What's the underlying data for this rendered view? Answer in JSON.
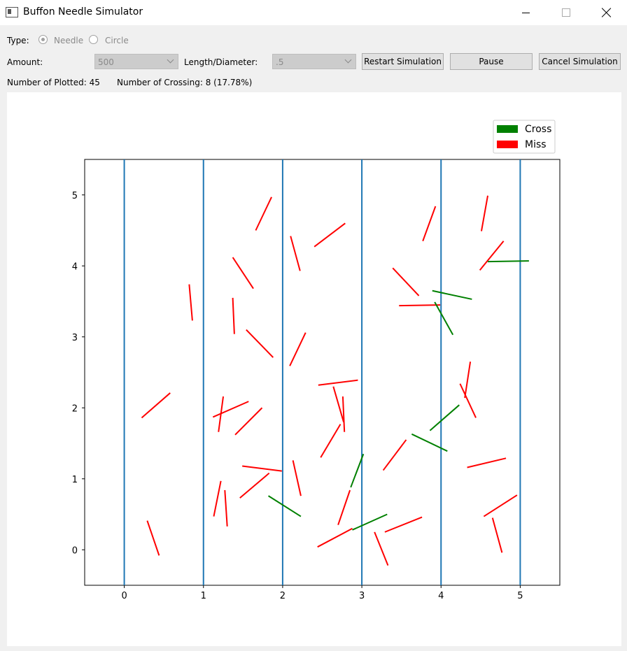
{
  "window": {
    "title": "Buffon Needle Simulator"
  },
  "controls": {
    "type_label": "Type:",
    "type_options": [
      "Needle",
      "Circle"
    ],
    "type_selected": "Needle",
    "amount_label": "Amount:",
    "amount_value": "500",
    "length_label": "Length/Diameter:",
    "length_value": ".5",
    "restart_label": "Restart Simulation",
    "pause_label": "Pause",
    "cancel_label": "Cancel Simulation"
  },
  "status": {
    "plotted": "Number of Plotted: 45",
    "crossing": "Number of Crossing: 8 (17.78%)"
  },
  "colors": {
    "cross": "#008000",
    "miss": "#ff0000",
    "grid_line": "#1f77b4"
  },
  "chart_data": {
    "type": "line",
    "xlim": [
      -0.5,
      5.5
    ],
    "ylim": [
      -0.5,
      5.5
    ],
    "xticks": [
      0,
      1,
      2,
      3,
      4,
      5
    ],
    "yticks": [
      0,
      1,
      2,
      3,
      4,
      5
    ],
    "vertical_lines": [
      0,
      1,
      2,
      3,
      4,
      5
    ],
    "legend": {
      "position": "top-right",
      "entries": [
        {
          "label": "Cross",
          "color": "#008000"
        },
        {
          "label": "Miss",
          "color": "#ff0000"
        }
      ]
    },
    "needles": [
      {
        "x1": 1.66,
        "y1": 4.5,
        "x2": 1.86,
        "y2": 4.97,
        "cross": false
      },
      {
        "x1": 2.1,
        "y1": 4.42,
        "x2": 2.22,
        "y2": 3.93,
        "cross": false
      },
      {
        "x1": 2.4,
        "y1": 4.27,
        "x2": 2.79,
        "y2": 4.6,
        "cross": false
      },
      {
        "x1": 1.37,
        "y1": 4.12,
        "x2": 1.63,
        "y2": 3.68,
        "cross": false
      },
      {
        "x1": 0.82,
        "y1": 3.74,
        "x2": 0.86,
        "y2": 3.23,
        "cross": false
      },
      {
        "x1": 1.37,
        "y1": 3.55,
        "x2": 1.39,
        "y2": 3.04,
        "cross": false
      },
      {
        "x1": 1.54,
        "y1": 3.1,
        "x2": 1.88,
        "y2": 2.71,
        "cross": false
      },
      {
        "x1": 2.09,
        "y1": 2.59,
        "x2": 2.29,
        "y2": 3.06,
        "cross": false
      },
      {
        "x1": 3.39,
        "y1": 3.97,
        "x2": 3.72,
        "y2": 3.58,
        "cross": false
      },
      {
        "x1": 3.77,
        "y1": 4.35,
        "x2": 3.93,
        "y2": 4.84,
        "cross": false
      },
      {
        "x1": 4.51,
        "y1": 4.49,
        "x2": 4.59,
        "y2": 4.99,
        "cross": false
      },
      {
        "x1": 4.49,
        "y1": 3.94,
        "x2": 4.79,
        "y2": 4.35,
        "cross": false
      },
      {
        "x1": 3.47,
        "y1": 3.44,
        "x2": 3.99,
        "y2": 3.45,
        "cross": false
      },
      {
        "x1": 0.22,
        "y1": 1.86,
        "x2": 0.58,
        "y2": 2.21,
        "cross": false
      },
      {
        "x1": 1.12,
        "y1": 1.87,
        "x2": 1.57,
        "y2": 2.09,
        "cross": false
      },
      {
        "x1": 1.19,
        "y1": 1.66,
        "x2": 1.25,
        "y2": 2.16,
        "cross": false
      },
      {
        "x1": 1.4,
        "y1": 1.62,
        "x2": 1.74,
        "y2": 2.0,
        "cross": false
      },
      {
        "x1": 2.45,
        "y1": 2.32,
        "x2": 2.95,
        "y2": 2.39,
        "cross": false
      },
      {
        "x1": 2.64,
        "y1": 2.3,
        "x2": 2.77,
        "y2": 1.8,
        "cross": false
      },
      {
        "x1": 2.76,
        "y1": 2.16,
        "x2": 2.78,
        "y2": 1.66,
        "cross": false
      },
      {
        "x1": 2.48,
        "y1": 1.3,
        "x2": 2.73,
        "y2": 1.77,
        "cross": false
      },
      {
        "x1": 3.27,
        "y1": 1.12,
        "x2": 3.56,
        "y2": 1.55,
        "cross": false
      },
      {
        "x1": 4.24,
        "y1": 2.34,
        "x2": 4.44,
        "y2": 1.86,
        "cross": false
      },
      {
        "x1": 4.3,
        "y1": 2.14,
        "x2": 4.37,
        "y2": 2.65,
        "cross": false
      },
      {
        "x1": 4.33,
        "y1": 1.16,
        "x2": 4.82,
        "y2": 1.29,
        "cross": false
      },
      {
        "x1": 1.49,
        "y1": 1.18,
        "x2": 1.99,
        "y2": 1.11,
        "cross": false
      },
      {
        "x1": 2.13,
        "y1": 1.26,
        "x2": 2.23,
        "y2": 0.76,
        "cross": false
      },
      {
        "x1": 1.46,
        "y1": 0.73,
        "x2": 1.83,
        "y2": 1.08,
        "cross": false
      },
      {
        "x1": 1.13,
        "y1": 0.47,
        "x2": 1.22,
        "y2": 0.97,
        "cross": false
      },
      {
        "x1": 1.27,
        "y1": 0.84,
        "x2": 1.3,
        "y2": 0.33,
        "cross": false
      },
      {
        "x1": 0.29,
        "y1": 0.41,
        "x2": 0.44,
        "y2": -0.08,
        "cross": false
      },
      {
        "x1": 2.44,
        "y1": 0.04,
        "x2": 2.88,
        "y2": 0.3,
        "cross": false
      },
      {
        "x1": 2.7,
        "y1": 0.35,
        "x2": 2.85,
        "y2": 0.84,
        "cross": false
      },
      {
        "x1": 3.16,
        "y1": 0.25,
        "x2": 3.33,
        "y2": -0.22,
        "cross": false
      },
      {
        "x1": 3.29,
        "y1": 0.25,
        "x2": 3.76,
        "y2": 0.46,
        "cross": false
      },
      {
        "x1": 4.54,
        "y1": 0.47,
        "x2": 4.96,
        "y2": 0.77,
        "cross": false
      },
      {
        "x1": 4.65,
        "y1": 0.45,
        "x2": 4.77,
        "y2": -0.04,
        "cross": false
      },
      {
        "x1": 1.82,
        "y1": 0.76,
        "x2": 2.23,
        "y2": 0.47,
        "cross": true
      },
      {
        "x1": 2.86,
        "y1": 0.88,
        "x2": 3.02,
        "y2": 1.35,
        "cross": true
      },
      {
        "x1": 2.88,
        "y1": 0.28,
        "x2": 3.32,
        "y2": 0.5,
        "cross": true
      },
      {
        "x1": 3.63,
        "y1": 1.63,
        "x2": 4.08,
        "y2": 1.39,
        "cross": true
      },
      {
        "x1": 3.86,
        "y1": 1.68,
        "x2": 4.23,
        "y2": 2.04,
        "cross": true
      },
      {
        "x1": 3.92,
        "y1": 3.49,
        "x2": 4.15,
        "y2": 3.03,
        "cross": true
      },
      {
        "x1": 3.89,
        "y1": 3.65,
        "x2": 4.39,
        "y2": 3.53,
        "cross": true
      },
      {
        "x1": 4.59,
        "y1": 4.06,
        "x2": 5.11,
        "y2": 4.07,
        "cross": true
      }
    ]
  }
}
